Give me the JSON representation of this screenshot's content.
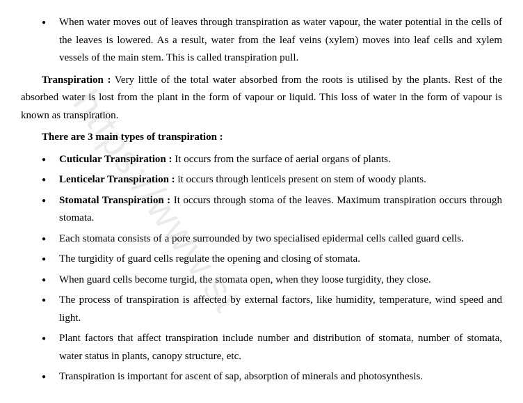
{
  "watermark": "https://www.st",
  "bullets_top": [
    "When water moves out of leaves through transpiration as water vapour, the water potential in the cells of the leaves is lowered. As a result, water from the leaf veins (xylem) moves into leaf cells and xylem vessels of the main stem. This is called transpiration pull."
  ],
  "para1_bold": "Transpiration :",
  "para1_text": " Very little of the total water absorbed from the roots is utilised by the plants. Rest of the absorbed water is lost from the plant in the form of vapour or liquid. This loss of water in the form of vapour is known as transpiration.",
  "heading": "There are 3 main types of transpiration :",
  "types": [
    {
      "label": "Cuticular Transpiration :",
      "text": " It occurs from the surface of aerial organs of plants."
    },
    {
      "label": "Lenticelar Transpiration :",
      "text": " it occurs through lenticels present on stem of woody plants."
    },
    {
      "label": "Stomatal Transpiration :",
      "text": " It occurs through stoma of the leaves. Maximum transpiration occurs through stomata."
    }
  ],
  "bullets_bottom": [
    "Each stomata consists of a pore surrounded by two specialised epidermal cells called guard cells.",
    "The turgidity of guard cells regulate the opening and closing of stomata.",
    "When guard cells become turgid, the stomata open, when they loose turgidity, they close.",
    "The process of transpiration is affected by external factors, like humidity, temperature, wind speed and light.",
    "Plant factors that affect transpiration include number and distribution of stomata, number of stomata, water status in plants, canopy structure, etc.",
    " Transpiration is important for ascent of sap, absorption of minerals and photosynthesis."
  ]
}
